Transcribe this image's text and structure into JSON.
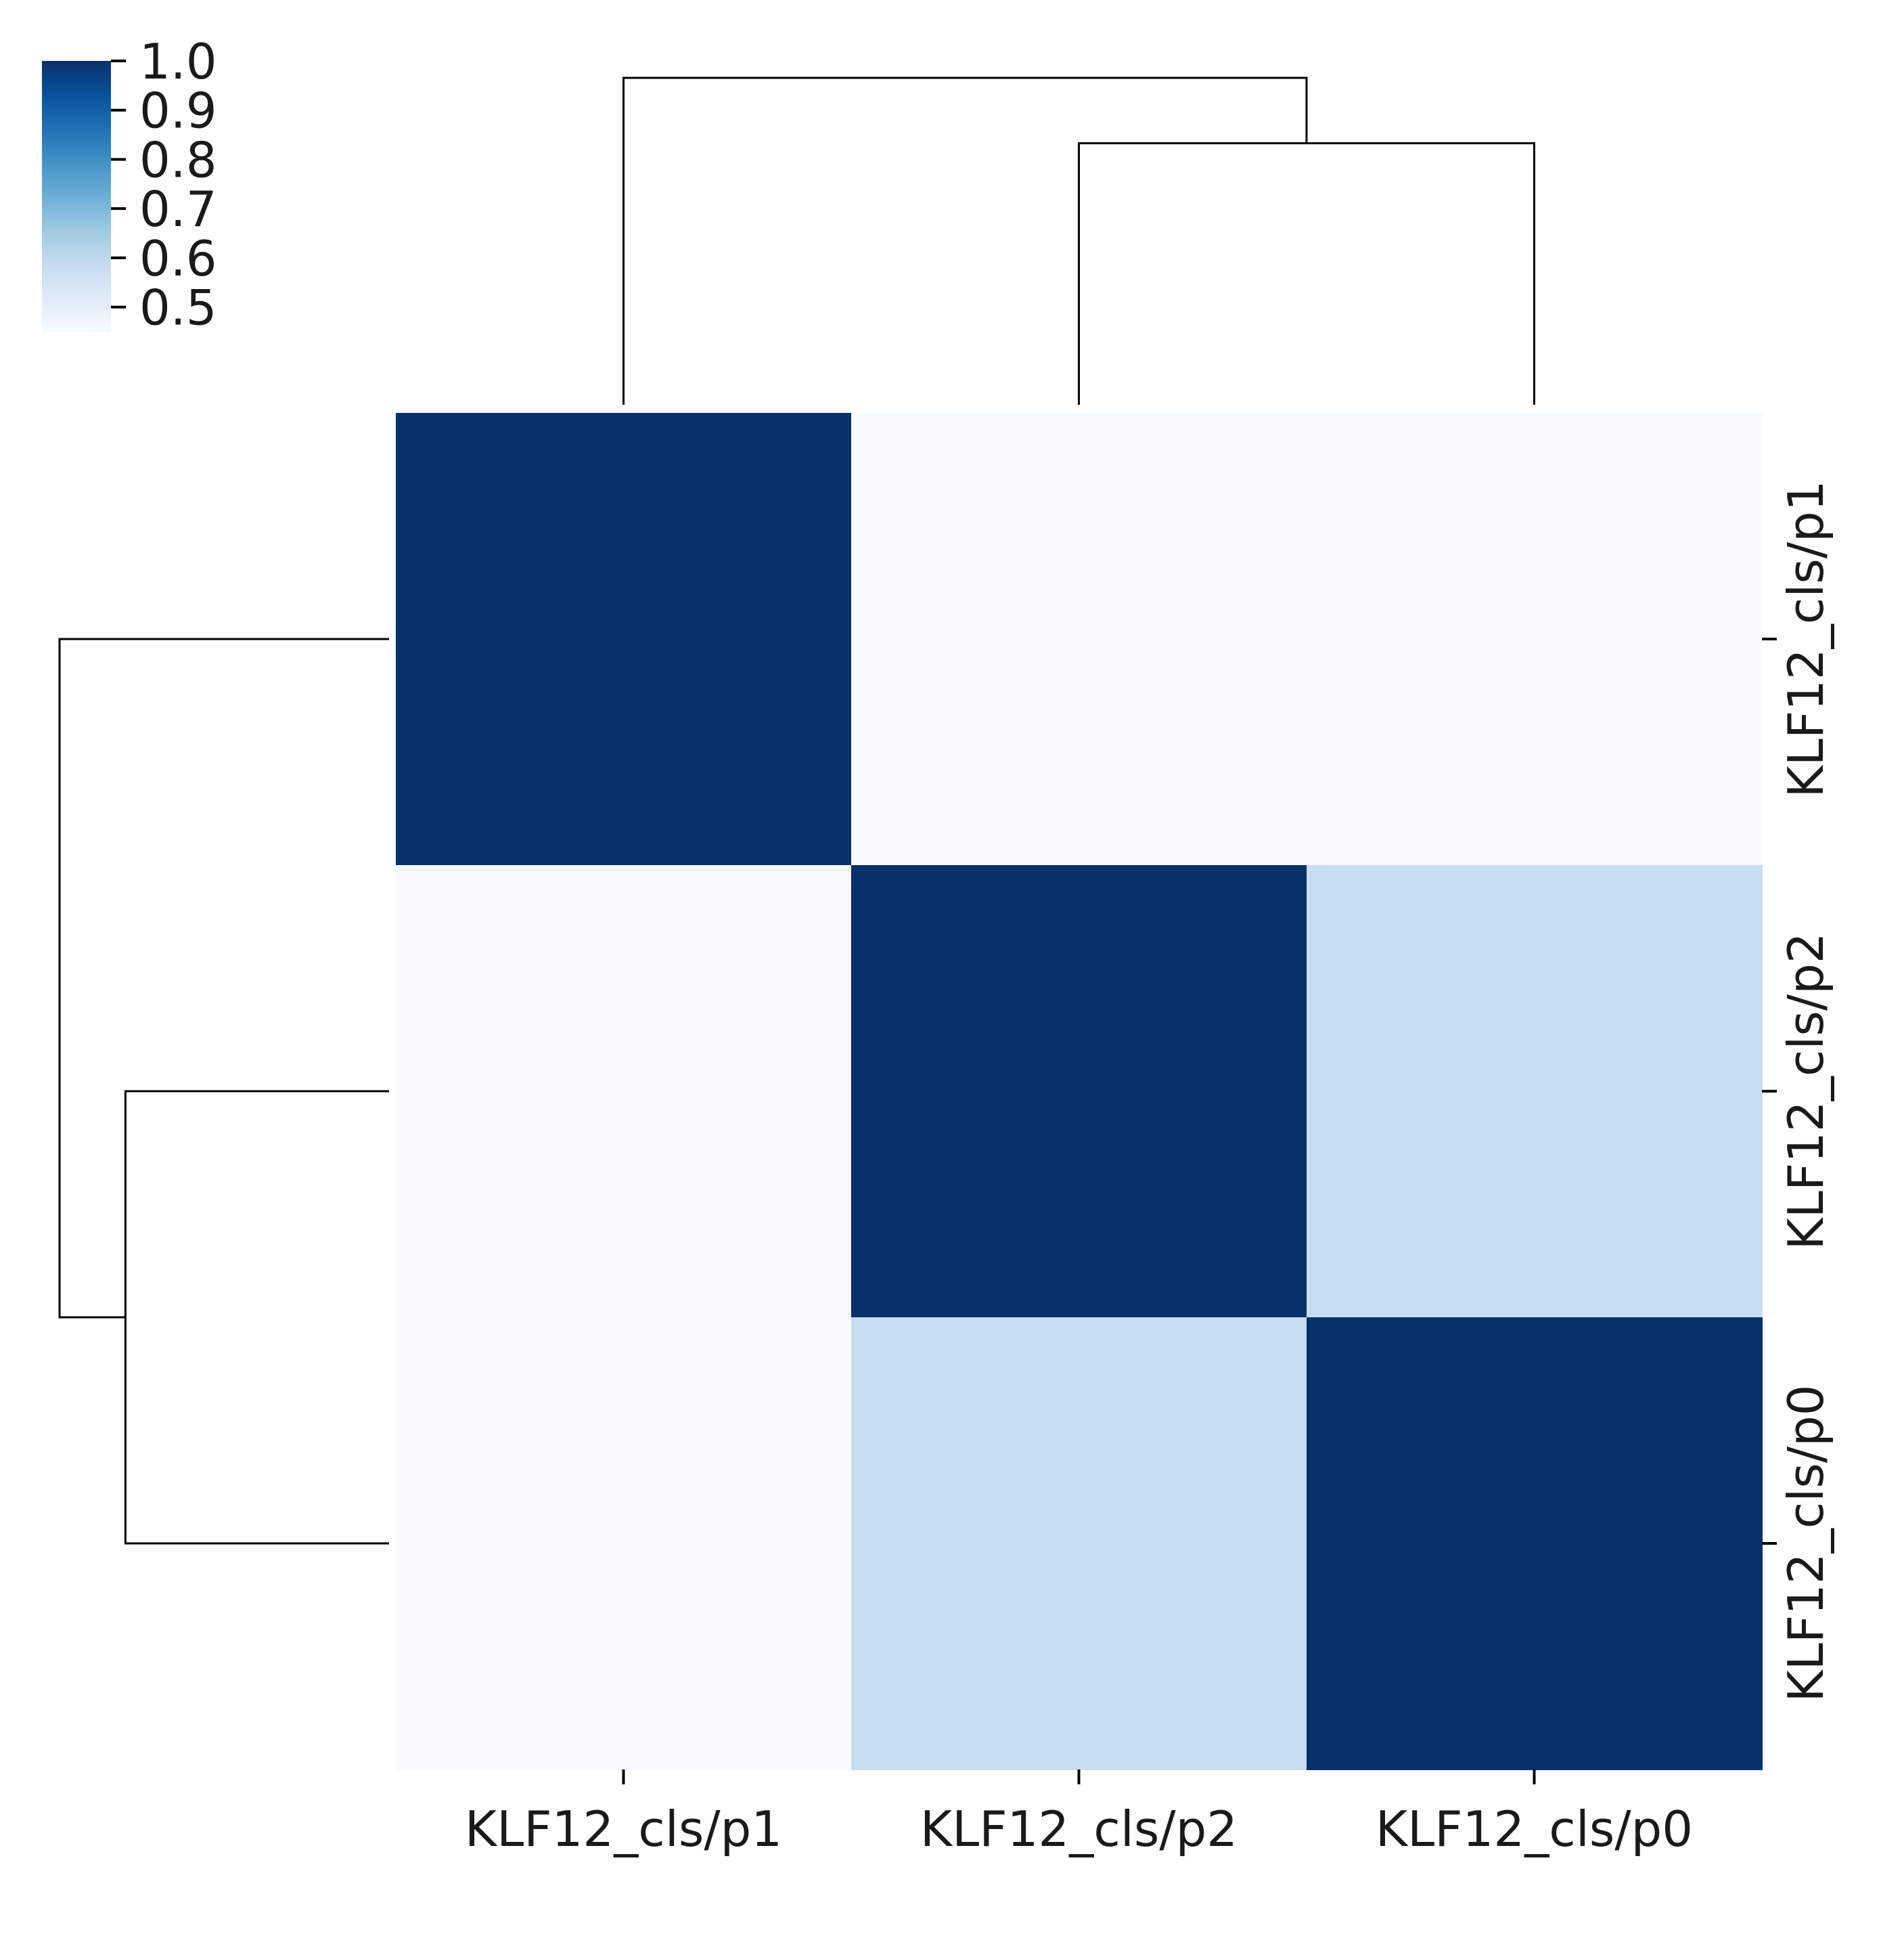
{
  "chart_data": {
    "type": "heatmap",
    "title": "",
    "xlabel": "",
    "ylabel": "",
    "x_labels": [
      "KLF12_cls/p1",
      "KLF12_cls/p2",
      "KLF12_cls/p0"
    ],
    "y_labels": [
      "KLF12_cls/p1",
      "KLF12_cls/p2",
      "KLF12_cls/p0"
    ],
    "values": [
      [
        1.0,
        0.45,
        0.45
      ],
      [
        0.45,
        1.0,
        0.58
      ],
      [
        0.45,
        0.58,
        1.0
      ]
    ],
    "colormap": "Blues",
    "color_stops": [
      "#f7fbff",
      "#deebf7",
      "#c6dbef",
      "#9ecae1",
      "#6baed6",
      "#4292c6",
      "#2171b5",
      "#08519c",
      "#08306b"
    ],
    "colorbar": {
      "vmin": 0.45,
      "vmax": 1.0,
      "ticks": [
        1.0,
        0.9,
        0.8,
        0.7,
        0.6,
        0.5
      ],
      "tick_labels": [
        "1.0",
        "0.9",
        "0.8",
        "0.7",
        "0.6",
        "0.5"
      ],
      "placement": "top-left"
    },
    "dendrogram": {
      "merges": [
        {
          "left": "KLF12_cls/p2",
          "right": "KLF12_cls/p0",
          "height": 0.8
        },
        {
          "left": "KLF12_cls/p1",
          "right": "KLF12_cls/p2+KLF12_cls/p0",
          "height": 1.0
        }
      ]
    }
  }
}
